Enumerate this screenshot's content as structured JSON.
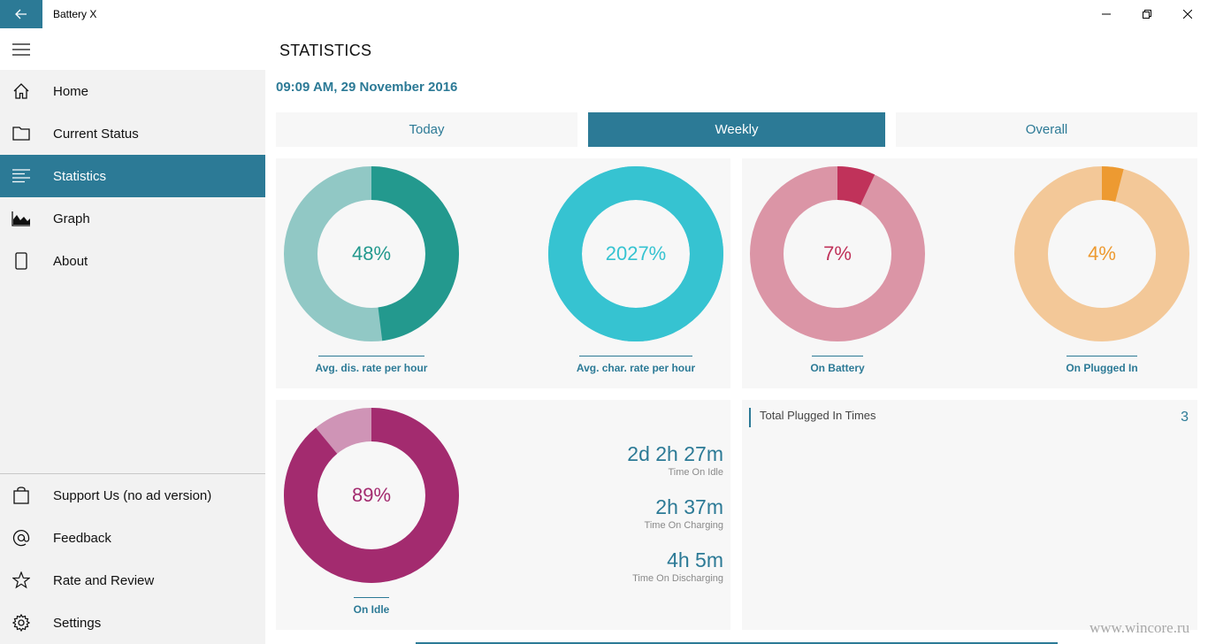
{
  "app": {
    "title": "Battery X"
  },
  "sidebar": {
    "items": [
      {
        "label": "Home",
        "icon": "home-icon"
      },
      {
        "label": "Current Status",
        "icon": "folder-icon"
      },
      {
        "label": "Statistics",
        "icon": "list-icon",
        "active": true
      },
      {
        "label": "Graph",
        "icon": "area-chart-icon"
      },
      {
        "label": "About",
        "icon": "phone-icon"
      }
    ],
    "bottom_items": [
      {
        "label": "Support Us (no ad version)",
        "icon": "shopping-bag-icon"
      },
      {
        "label": "Feedback",
        "icon": "at-sign-icon"
      },
      {
        "label": "Rate and Review",
        "icon": "star-icon"
      },
      {
        "label": "Settings",
        "icon": "gear-icon"
      }
    ]
  },
  "main": {
    "title": "STATISTICS",
    "datetime": "09:09 AM, 29 November 2016",
    "tabs": [
      {
        "label": "Today",
        "active": false
      },
      {
        "label": "Weekly",
        "active": true
      },
      {
        "label": "Overall",
        "active": false
      }
    ],
    "donuts": [
      {
        "value": "48%",
        "fraction": 0.48,
        "caption": "Avg. dis. rate per hour",
        "color": "#23998e",
        "track": "#91c8c5"
      },
      {
        "value": "2027%",
        "fraction": 1.0,
        "caption": "Avg. char. rate per hour",
        "color": "#36c3d1",
        "track": "#36c3d1"
      },
      {
        "value": "7%",
        "fraction": 0.07,
        "caption": "On Battery",
        "color": "#c0325a",
        "track": "#db95a6"
      },
      {
        "value": "4%",
        "fraction": 0.04,
        "caption": "On Plugged In",
        "color": "#ed9a31",
        "track": "#f3c898"
      },
      {
        "value": "89%",
        "fraction": 0.89,
        "caption": "On Idle",
        "color": "#a32b6f",
        "track": "#cf94b6"
      }
    ],
    "times": [
      {
        "value": "2d 2h 27m",
        "label": "Time On Idle"
      },
      {
        "value": "2h 37m",
        "label": "Time On Charging"
      },
      {
        "value": "4h 5m",
        "label": "Time On Discharging"
      }
    ],
    "plugged": {
      "label": "Total Plugged In Times",
      "count": "3"
    }
  },
  "watermark": "www.wincore.ru",
  "colors": {
    "accent": "#2c7a96",
    "sidebar_bg": "#f2f2f2",
    "panel_bg": "#f7f7f7"
  }
}
